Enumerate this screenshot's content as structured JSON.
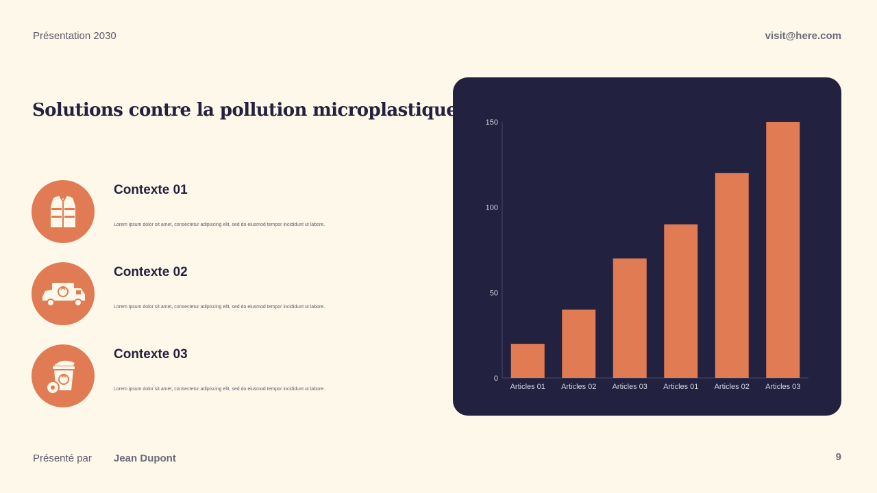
{
  "header": {
    "left": "Présentation 2030",
    "right": "visit@here.com"
  },
  "title": "Solutions contre la pollution microplastique",
  "items": [
    {
      "title": "Contexte 01",
      "description": "Lorem ipsum dolor sit amet, consectetur adipiscing elit, sed do eiusmod tempor incididunt ut labore.",
      "icon": "safety-vest-icon"
    },
    {
      "title": "Contexte 02",
      "description": "Lorem ipsum dolor sit amet, consectetur adipiscing elit, sed do eiusmod tempor incididunt ut labore.",
      "icon": "recycling-truck-icon"
    },
    {
      "title": "Contexte 03",
      "description": "Lorem ipsum dolor sit amet, consectetur adipiscing elit, sed do eiusmod tempor incididunt ut labore.",
      "icon": "recycle-bin-icon"
    }
  ],
  "footer": {
    "label": "Présenté par",
    "name": "Jean Dupont",
    "page": "9"
  },
  "colors": {
    "background": "#FEF8EA",
    "accent": "#E07B54",
    "panel": "#22213F",
    "text": "#23213D"
  },
  "chart_data": {
    "type": "bar",
    "categories": [
      "Articles 01",
      "Articles 02",
      "Articles 03",
      "Articles 01",
      "Articles 02",
      "Articles 03"
    ],
    "values": [
      20,
      40,
      70,
      90,
      120,
      150
    ],
    "yticks": [
      "0",
      "50",
      "100",
      "150"
    ],
    "ylim": [
      0,
      150
    ],
    "title": "",
    "xlabel": "",
    "ylabel": "",
    "grid": false,
    "legend": "none"
  }
}
